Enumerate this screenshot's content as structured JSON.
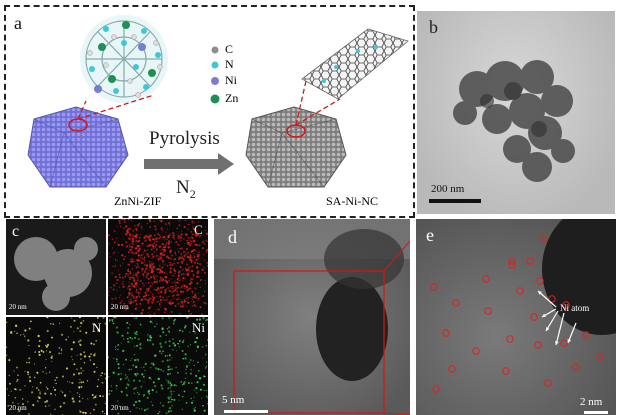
{
  "panel_a": {
    "label": "a",
    "legend": [
      {
        "element": "C",
        "color": "#8e8e8e"
      },
      {
        "element": "N",
        "color": "#3ec7d8"
      },
      {
        "element": "Ni",
        "color": "#7b7bd0"
      },
      {
        "element": "Zn",
        "color": "#1e8f55"
      }
    ],
    "process_label": "Pyrolysis",
    "atmosphere": "N",
    "atmosphere_subscript": "2",
    "start_material": "ZnNi-ZIF",
    "product": "SA-Ni-NC"
  },
  "panel_b": {
    "label": "b",
    "scale_bar": "200 nm"
  },
  "panel_c": {
    "label": "c",
    "haadf_bar": "20 nm",
    "maps": [
      {
        "element": "C",
        "color": "#e02020",
        "scale": "20 nm"
      },
      {
        "element": "N",
        "color": "#e6e05a",
        "scale": "20 nm"
      },
      {
        "element": "Ni",
        "color": "#3ad64a",
        "scale": "20 nm"
      }
    ]
  },
  "panel_d": {
    "label": "d",
    "scale_bar": "5 nm"
  },
  "panel_e": {
    "label": "e",
    "scale_bar": "2 nm",
    "annotation": "Ni atom"
  }
}
